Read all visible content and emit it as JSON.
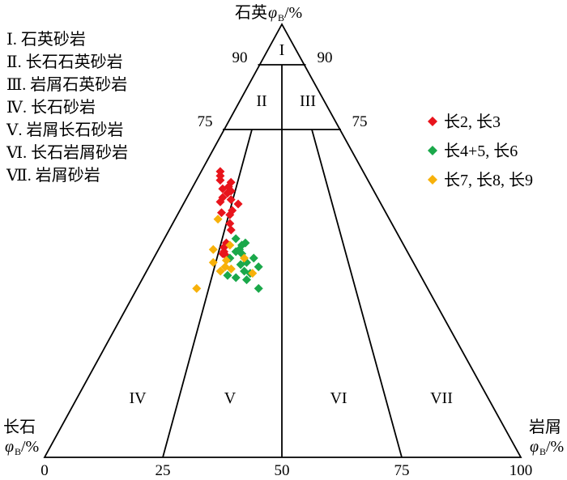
{
  "legend_classes": [
    "Ⅰ. 石英砂岩",
    "Ⅱ. 长石石英砂岩",
    "Ⅲ. 岩屑石英砂岩",
    "Ⅳ. 长石砂岩",
    "Ⅴ. 岩屑长石砂岩",
    "Ⅵ. 长石岩屑砂岩",
    "Ⅶ. 岩屑砂岩"
  ],
  "apex": {
    "top": {
      "name": "石英",
      "symbol": "φ",
      "subscript": "B",
      "unit": "/%"
    },
    "left": {
      "name": "长石",
      "symbol": "φ",
      "subscript": "B",
      "unit": "/%"
    },
    "right": {
      "name": "岩屑",
      "symbol": "φ",
      "subscript": "B",
      "unit": "/%"
    }
  },
  "field_labels": [
    "I",
    "II",
    "III",
    "IV",
    "V",
    "VI",
    "VII"
  ],
  "quartz_ticks": [
    "90",
    "90",
    "75",
    "75"
  ],
  "base_ticks": [
    "0",
    "25",
    "50",
    "75",
    "100"
  ],
  "series_legend": [
    {
      "label": "长2, 长3",
      "color": "#e8141c"
    },
    {
      "label": "长4+5, 长6",
      "color": "#1aa84a"
    },
    {
      "label": "长7, 长8, 长9",
      "color": "#f7b10a"
    }
  ],
  "marker_shape": "diamond",
  "chart_data": {
    "type": "scatter",
    "note_axes": "ternary",
    "series": [
      {
        "name": "长2, 长3",
        "color": "#e8141c",
        "points": [
          [
            66.0,
            30.0,
            4.0
          ],
          [
            65.0,
            30.5,
            4.5
          ],
          [
            64.0,
            31.0,
            5.0
          ],
          [
            63.5,
            29.0,
            7.5
          ],
          [
            62.5,
            30.0,
            7.5
          ],
          [
            62.0,
            31.5,
            6.5
          ],
          [
            61.5,
            30.0,
            8.5
          ],
          [
            61.0,
            31.0,
            8.0
          ],
          [
            60.0,
            32.5,
            7.5
          ],
          [
            59.5,
            31.0,
            9.5
          ],
          [
            59.0,
            33.5,
            7.5
          ],
          [
            58.5,
            30.0,
            11.5
          ],
          [
            57.0,
            32.0,
            11.0
          ],
          [
            56.5,
            34.5,
            9.0
          ],
          [
            56.0,
            33.0,
            11.0
          ],
          [
            54.0,
            34.0,
            12.0
          ],
          [
            52.5,
            34.5,
            13.0
          ],
          [
            49.5,
            37.0,
            13.5
          ],
          [
            48.5,
            38.0,
            13.5
          ],
          [
            47.5,
            38.5,
            14.0
          ],
          [
            47.0,
            39.0,
            14.0
          ],
          [
            46.5,
            38.5,
            15.0
          ]
        ]
      },
      {
        "name": "长4+5, 长6",
        "color": "#1aa84a",
        "points": [
          [
            50.5,
            34.5,
            15.0
          ],
          [
            49.5,
            33.0,
            17.5
          ],
          [
            49.0,
            34.0,
            17.0
          ],
          [
            48.0,
            35.0,
            17.0
          ],
          [
            47.5,
            36.0,
            16.5
          ],
          [
            47.0,
            35.0,
            18.0
          ],
          [
            46.0,
            33.0,
            21.0
          ],
          [
            46.0,
            38.0,
            16.0
          ],
          [
            45.0,
            35.0,
            20.0
          ],
          [
            44.5,
            36.5,
            19.0
          ],
          [
            44.0,
            33.0,
            23.0
          ],
          [
            43.0,
            36.5,
            20.5
          ],
          [
            42.5,
            35.5,
            22.0
          ],
          [
            42.0,
            40.5,
            17.5
          ],
          [
            41.5,
            39.0,
            19.5
          ],
          [
            41.0,
            37.0,
            22.0
          ],
          [
            39.0,
            35.5,
            25.5
          ]
        ]
      },
      {
        "name": "长7, 长8, 长9",
        "color": "#f7b10a",
        "points": [
          [
            55.0,
            36.0,
            9.0
          ],
          [
            49.0,
            36.5,
            14.5
          ],
          [
            48.0,
            40.5,
            11.5
          ],
          [
            46.0,
            35.0,
            19.0
          ],
          [
            45.5,
            39.0,
            15.5
          ],
          [
            45.0,
            42.0,
            13.0
          ],
          [
            44.0,
            40.0,
            16.0
          ],
          [
            43.5,
            39.0,
            17.5
          ],
          [
            43.0,
            41.5,
            15.5
          ],
          [
            42.5,
            35.0,
            22.5
          ],
          [
            39.0,
            48.5,
            12.5
          ]
        ]
      }
    ]
  }
}
